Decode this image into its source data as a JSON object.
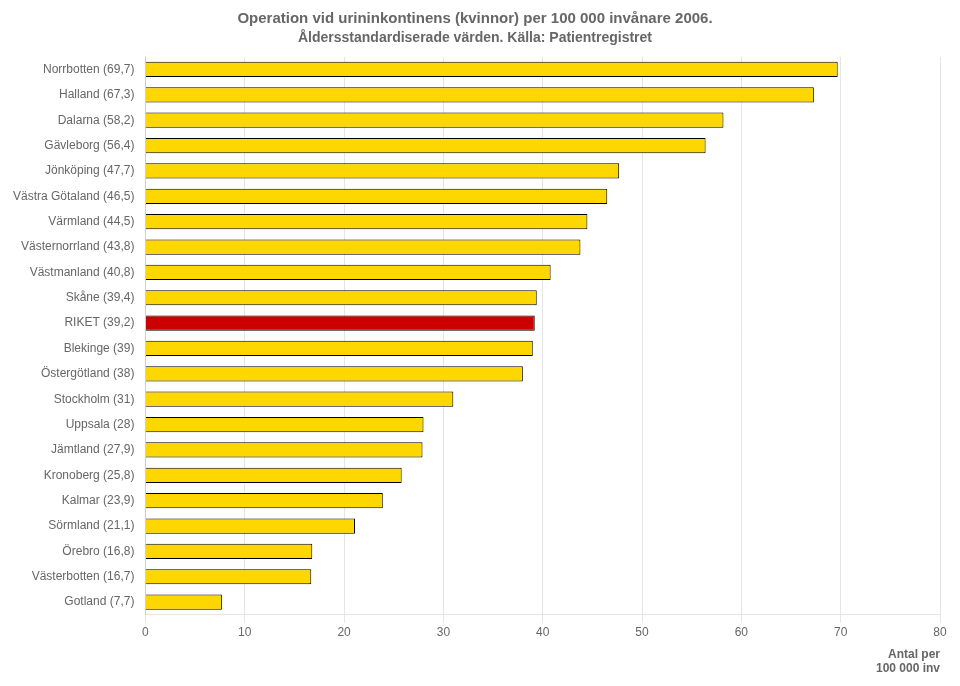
{
  "chart_data": {
    "type": "bar",
    "orientation": "horizontal",
    "title": "Operation vid urininkontinens (kvinnor) per 100 000 invånare 2006.",
    "subtitle": "Åldersstandardiserade värden. Källa: Patientregistret",
    "categories": [
      "Norrbotten (69,7)",
      "Halland (67,3)",
      "Dalarna (58,2)",
      "Gävleborg (56,4)",
      "Jönköping (47,7)",
      "Västra Götaland (46,5)",
      "Värmland (44,5)",
      "Västernorrland (43,8)",
      "Västmanland (40,8)",
      "Skåne (39,4)",
      "RIKET (39,2)",
      "Blekinge (39)",
      "Östergötland (38)",
      "Stockholm (31)",
      "Uppsala (28)",
      "Jämtland (27,9)",
      "Kronoberg (25,8)",
      "Kalmar (23,9)",
      "Sörmland (21,1)",
      "Örebro (16,8)",
      "Västerbotten (16,7)",
      "Gotland (7,7)"
    ],
    "values": [
      69.7,
      67.3,
      58.2,
      56.4,
      47.7,
      46.5,
      44.5,
      43.8,
      40.8,
      39.4,
      39.2,
      39.0,
      38.0,
      31.0,
      28.0,
      27.9,
      25.8,
      23.9,
      21.1,
      16.8,
      16.7,
      7.7
    ],
    "colors": [
      "#FFD700",
      "#FFD700",
      "#FFD700",
      "#FFD700",
      "#FFD700",
      "#FFD700",
      "#FFD700",
      "#FFD700",
      "#FFD700",
      "#FFD700",
      "#CC0000",
      "#FFD700",
      "#FFD700",
      "#FFD700",
      "#FFD700",
      "#FFD700",
      "#FFD700",
      "#FFD700",
      "#FFD700",
      "#FFD700",
      "#FFD700",
      "#FFD700"
    ],
    "xlabel": "Antal per\n100 000 inv",
    "xlim": [
      0,
      80
    ],
    "xticks": [
      0,
      10,
      20,
      30,
      40,
      50,
      60,
      70,
      80
    ],
    "grid": true
  }
}
